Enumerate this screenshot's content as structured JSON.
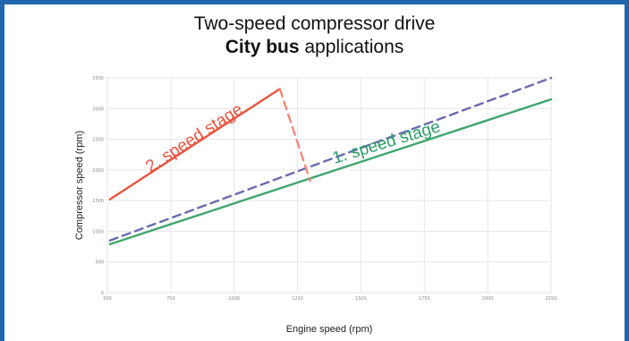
{
  "chart_data": {
    "type": "line",
    "title_line1": "Two-speed compressor drive",
    "title_line2_bold": "City bus",
    "title_line2_rest": " applications",
    "xlabel": "Engine speed (rpm)",
    "ylabel": "Compressor speed (rpm)",
    "xlim": [
      500,
      2250
    ],
    "ylim": [
      0,
      3500
    ],
    "x_ticks": [
      500,
      750,
      1000,
      1250,
      1500,
      1750,
      2000,
      2250
    ],
    "y_ticks": [
      0,
      500,
      1000,
      1500,
      2000,
      2500,
      3000,
      3500
    ],
    "grid": true,
    "annotations": [
      {
        "text": "2. speed stage",
        "color": "#e8553f"
      },
      {
        "text": "1. speed stage",
        "color": "#2e9e6a"
      }
    ],
    "series": [
      {
        "key": "speed1",
        "x": [
          510,
          2250
        ],
        "y": [
          790,
          3150
        ],
        "color": "#3fa56d",
        "style": "solid"
      },
      {
        "key": "dashed_ratio",
        "x": [
          510,
          2250
        ],
        "y": [
          850,
          3500
        ],
        "color": "#6a6bb0",
        "style": "dashed"
      },
      {
        "key": "speed2",
        "x": [
          510,
          1180
        ],
        "y": [
          1520,
          3320
        ],
        "color": "#e8553f",
        "style": "solid"
      },
      {
        "key": "switch",
        "x": [
          1180,
          1300
        ],
        "y": [
          3320,
          1820
        ],
        "color": "#f08a78",
        "style": "dashed"
      }
    ]
  }
}
